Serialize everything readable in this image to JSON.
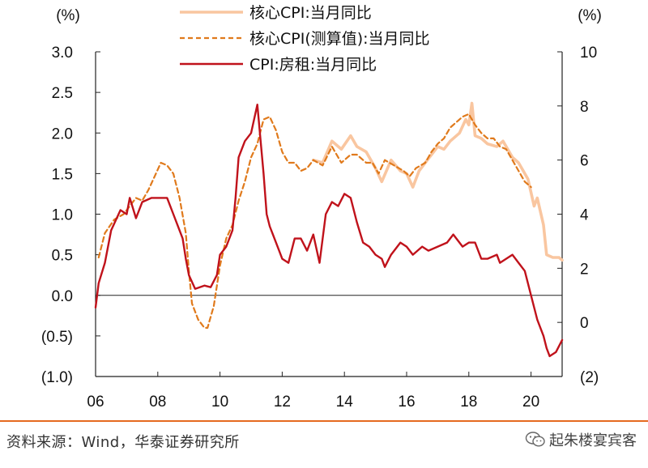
{
  "chart_data": {
    "type": "line",
    "left_axis": {
      "unit_label": "(%)",
      "ylim": [
        -1.0,
        3.0
      ],
      "ticks": [
        3.0,
        2.5,
        2.0,
        1.5,
        1.0,
        0.5,
        0.0,
        -0.5,
        -1.0
      ],
      "tick_labels": [
        "3.0",
        "2.5",
        "2.0",
        "1.5",
        "1.0",
        "0.5",
        "0.0",
        "(0.5)",
        "(1.0)"
      ]
    },
    "right_axis": {
      "unit_label": "(%)",
      "ylim": [
        -2,
        10
      ],
      "ticks": [
        10,
        8,
        6,
        4,
        2,
        0,
        -2
      ],
      "tick_labels": [
        "10",
        "8",
        "6",
        "4",
        "2",
        "0",
        "(2)"
      ]
    },
    "x_axis": {
      "xlim": [
        2006.0,
        2021.0
      ],
      "ticks": [
        2006,
        2008,
        2010,
        2012,
        2014,
        2016,
        2018,
        2020
      ],
      "tick_labels": [
        "06",
        "08",
        "10",
        "12",
        "14",
        "16",
        "18",
        "20"
      ]
    },
    "series": [
      {
        "name": "核心CPI:当月同比",
        "axis": "right",
        "color": "#f9c6a0",
        "style": "solid",
        "points": [
          [
            2013.0,
            6.0
          ],
          [
            2013.3,
            5.9
          ],
          [
            2013.6,
            6.7
          ],
          [
            2013.9,
            6.4
          ],
          [
            2014.2,
            6.9
          ],
          [
            2014.4,
            6.5
          ],
          [
            2014.7,
            6.3
          ],
          [
            2015.0,
            5.7
          ],
          [
            2015.2,
            5.2
          ],
          [
            2015.5,
            6.0
          ],
          [
            2015.8,
            5.6
          ],
          [
            2016.0,
            5.5
          ],
          [
            2016.2,
            5.0
          ],
          [
            2016.4,
            5.6
          ],
          [
            2016.6,
            5.9
          ],
          [
            2016.8,
            6.2
          ],
          [
            2017.0,
            6.5
          ],
          [
            2017.2,
            6.4
          ],
          [
            2017.4,
            6.7
          ],
          [
            2017.7,
            7.0
          ],
          [
            2017.9,
            7.5
          ],
          [
            2018.0,
            7.3
          ],
          [
            2018.1,
            8.1
          ],
          [
            2018.2,
            6.9
          ],
          [
            2018.4,
            6.8
          ],
          [
            2018.6,
            6.6
          ],
          [
            2018.9,
            6.5
          ],
          [
            2019.1,
            6.7
          ],
          [
            2019.4,
            6.1
          ],
          [
            2019.6,
            5.9
          ],
          [
            2019.8,
            5.5
          ],
          [
            2019.9,
            5.3
          ],
          [
            2020.0,
            4.8
          ],
          [
            2020.1,
            4.3
          ],
          [
            2020.2,
            4.6
          ],
          [
            2020.4,
            3.6
          ],
          [
            2020.5,
            2.5
          ],
          [
            2020.7,
            2.4
          ],
          [
            2020.9,
            2.4
          ],
          [
            2021.0,
            2.3
          ]
        ]
      },
      {
        "name": "核心CPI(测算值):当月同比",
        "axis": "right",
        "color": "#e07a1c",
        "style": "dashed",
        "points": [
          [
            2006.1,
            2.4
          ],
          [
            2006.3,
            3.3
          ],
          [
            2006.6,
            3.8
          ],
          [
            2006.9,
            4.0
          ],
          [
            2007.1,
            4.3
          ],
          [
            2007.3,
            4.6
          ],
          [
            2007.5,
            4.5
          ],
          [
            2007.7,
            4.9
          ],
          [
            2007.9,
            5.4
          ],
          [
            2008.1,
            5.9
          ],
          [
            2008.3,
            5.8
          ],
          [
            2008.5,
            5.5
          ],
          [
            2008.7,
            4.6
          ],
          [
            2008.9,
            3.3
          ],
          [
            2009.0,
            1.9
          ],
          [
            2009.1,
            0.7
          ],
          [
            2009.3,
            0.1
          ],
          [
            2009.5,
            -0.2
          ],
          [
            2009.6,
            -0.2
          ],
          [
            2009.8,
            0.6
          ],
          [
            2010.0,
            2.1
          ],
          [
            2010.2,
            3.1
          ],
          [
            2010.4,
            3.6
          ],
          [
            2010.6,
            4.5
          ],
          [
            2010.8,
            5.2
          ],
          [
            2011.0,
            6.1
          ],
          [
            2011.2,
            6.6
          ],
          [
            2011.4,
            7.5
          ],
          [
            2011.6,
            7.6
          ],
          [
            2011.8,
            7.1
          ],
          [
            2012.0,
            6.3
          ],
          [
            2012.2,
            5.9
          ],
          [
            2012.4,
            5.9
          ],
          [
            2012.6,
            5.6
          ],
          [
            2012.8,
            5.7
          ],
          [
            2013.0,
            6.0
          ],
          [
            2013.3,
            5.8
          ],
          [
            2013.6,
            6.5
          ],
          [
            2013.9,
            5.9
          ],
          [
            2014.2,
            6.2
          ],
          [
            2014.4,
            6.2
          ],
          [
            2014.7,
            5.9
          ],
          [
            2014.9,
            5.9
          ],
          [
            2015.1,
            5.5
          ],
          [
            2015.3,
            6.0
          ],
          [
            2015.6,
            5.8
          ],
          [
            2015.9,
            5.6
          ],
          [
            2016.1,
            5.4
          ],
          [
            2016.3,
            5.7
          ],
          [
            2016.6,
            5.9
          ],
          [
            2016.8,
            6.3
          ],
          [
            2017.0,
            6.6
          ],
          [
            2017.2,
            6.8
          ],
          [
            2017.4,
            7.2
          ],
          [
            2017.6,
            7.4
          ],
          [
            2017.8,
            7.6
          ],
          [
            2018.0,
            7.7
          ],
          [
            2018.2,
            7.3
          ],
          [
            2018.4,
            7.0
          ],
          [
            2018.6,
            6.8
          ],
          [
            2018.8,
            6.8
          ],
          [
            2019.0,
            6.5
          ],
          [
            2019.2,
            6.4
          ],
          [
            2019.4,
            6.0
          ],
          [
            2019.6,
            5.6
          ],
          [
            2019.8,
            5.2
          ],
          [
            2020.0,
            5.0
          ]
        ]
      },
      {
        "name": "CPI:房租:当月同比",
        "axis": "left",
        "color": "#c0121b",
        "style": "solid",
        "points": [
          [
            2006.0,
            -0.15
          ],
          [
            2006.1,
            0.15
          ],
          [
            2006.3,
            0.4
          ],
          [
            2006.5,
            0.8
          ],
          [
            2006.8,
            1.05
          ],
          [
            2007.0,
            1.0
          ],
          [
            2007.1,
            1.2
          ],
          [
            2007.3,
            0.95
          ],
          [
            2007.5,
            1.15
          ],
          [
            2007.8,
            1.2
          ],
          [
            2008.0,
            1.2
          ],
          [
            2008.3,
            1.2
          ],
          [
            2008.5,
            1.0
          ],
          [
            2008.8,
            0.7
          ],
          [
            2008.9,
            0.45
          ],
          [
            2009.0,
            0.25
          ],
          [
            2009.2,
            0.08
          ],
          [
            2009.5,
            0.12
          ],
          [
            2009.7,
            0.1
          ],
          [
            2009.9,
            0.25
          ],
          [
            2010.0,
            0.5
          ],
          [
            2010.2,
            0.6
          ],
          [
            2010.4,
            0.8
          ],
          [
            2010.5,
            1.2
          ],
          [
            2010.6,
            1.7
          ],
          [
            2010.8,
            1.9
          ],
          [
            2011.0,
            2.0
          ],
          [
            2011.2,
            2.35
          ],
          [
            2011.4,
            1.5
          ],
          [
            2011.5,
            1.0
          ],
          [
            2011.6,
            0.85
          ],
          [
            2011.7,
            0.75
          ],
          [
            2011.9,
            0.55
          ],
          [
            2012.0,
            0.45
          ],
          [
            2012.2,
            0.4
          ],
          [
            2012.4,
            0.7
          ],
          [
            2012.6,
            0.7
          ],
          [
            2012.8,
            0.55
          ],
          [
            2013.0,
            0.75
          ],
          [
            2013.2,
            0.4
          ],
          [
            2013.4,
            1.0
          ],
          [
            2013.6,
            1.15
          ],
          [
            2013.8,
            1.1
          ],
          [
            2014.0,
            1.25
          ],
          [
            2014.2,
            1.2
          ],
          [
            2014.4,
            0.9
          ],
          [
            2014.6,
            0.65
          ],
          [
            2014.8,
            0.6
          ],
          [
            2015.0,
            0.5
          ],
          [
            2015.2,
            0.45
          ],
          [
            2015.3,
            0.35
          ],
          [
            2015.5,
            0.5
          ],
          [
            2015.8,
            0.65
          ],
          [
            2016.0,
            0.6
          ],
          [
            2016.2,
            0.5
          ],
          [
            2016.5,
            0.6
          ],
          [
            2016.7,
            0.55
          ],
          [
            2017.0,
            0.6
          ],
          [
            2017.3,
            0.65
          ],
          [
            2017.5,
            0.75
          ],
          [
            2017.8,
            0.6
          ],
          [
            2018.0,
            0.65
          ],
          [
            2018.2,
            0.65
          ],
          [
            2018.4,
            0.45
          ],
          [
            2018.6,
            0.45
          ],
          [
            2018.9,
            0.5
          ],
          [
            2019.0,
            0.4
          ],
          [
            2019.2,
            0.45
          ],
          [
            2019.4,
            0.5
          ],
          [
            2019.6,
            0.4
          ],
          [
            2019.8,
            0.3
          ],
          [
            2020.0,
            0.0
          ],
          [
            2020.2,
            -0.3
          ],
          [
            2020.4,
            -0.5
          ],
          [
            2020.5,
            -0.65
          ],
          [
            2020.6,
            -0.75
          ],
          [
            2020.8,
            -0.7
          ],
          [
            2021.0,
            -0.55
          ]
        ]
      }
    ]
  },
  "legend": [
    {
      "label": "核心CPI:当月同比",
      "color": "#f9c6a0",
      "style": "solid"
    },
    {
      "label": "核心CPI(测算值):当月同比",
      "color": "#e07a1c",
      "style": "dashed"
    },
    {
      "label": "CPI:房租:当月同比",
      "color": "#c0121b",
      "style": "solid"
    }
  ],
  "footer": {
    "source": "资料来源：Wind，华泰证券研究所",
    "watermark": "起朱楼宴宾客",
    "watermark_icon": "wechat-icon"
  }
}
